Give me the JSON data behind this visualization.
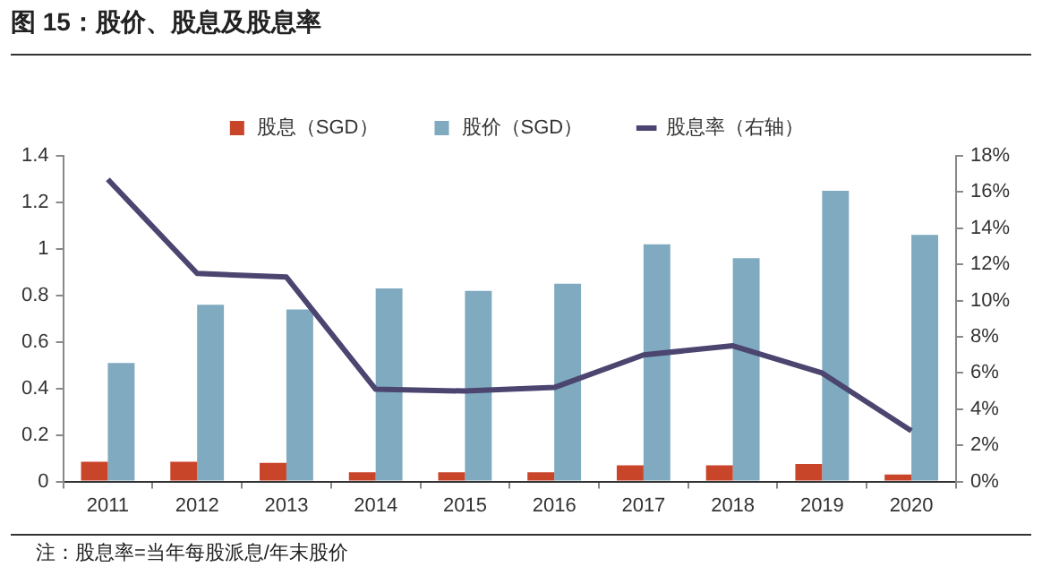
{
  "chart_data": {
    "type": "bar",
    "title": "图 15：股价、股息及股息率",
    "categories": [
      "2011",
      "2012",
      "2013",
      "2014",
      "2015",
      "2016",
      "2017",
      "2018",
      "2019",
      "2020"
    ],
    "series": [
      {
        "name": "股息（SGD）",
        "color": "#c9452a",
        "values": [
          0.085,
          0.085,
          0.08,
          0.04,
          0.04,
          0.04,
          0.07,
          0.07,
          0.075,
          0.03
        ]
      },
      {
        "name": "股价（SGD）",
        "color": "#7faabf",
        "values": [
          0.51,
          0.76,
          0.74,
          0.83,
          0.82,
          0.85,
          1.02,
          0.96,
          1.25,
          1.06
        ]
      },
      {
        "name": "股息率（右轴）",
        "type": "line",
        "axis": "y2",
        "color": "#4b4570",
        "values": [
          16.7,
          11.5,
          11.3,
          5.1,
          5.0,
          5.2,
          7.0,
          7.5,
          6.0,
          2.8
        ]
      }
    ],
    "ylim": [
      0,
      1.4
    ],
    "yticks": [
      0,
      0.2,
      0.4,
      0.6,
      0.8,
      1,
      1.2,
      1.4
    ],
    "y2lim": [
      0,
      18
    ],
    "y2ticks": [
      {
        "value": 0,
        "label": "0%"
      },
      {
        "value": 2,
        "label": "2%"
      },
      {
        "value": 4,
        "label": "4%"
      },
      {
        "value": 6,
        "label": "6%"
      },
      {
        "value": 8,
        "label": "8%"
      },
      {
        "value": 10,
        "label": "10%"
      },
      {
        "value": 12,
        "label": "12%"
      },
      {
        "value": 14,
        "label": "14%"
      },
      {
        "value": 16,
        "label": "16%"
      },
      {
        "value": 18,
        "label": "18%"
      }
    ],
    "grid": false,
    "legend": "top",
    "marker": "none",
    "annotations": [
      "注：股息率=当年每股派息/年末股价"
    ]
  }
}
